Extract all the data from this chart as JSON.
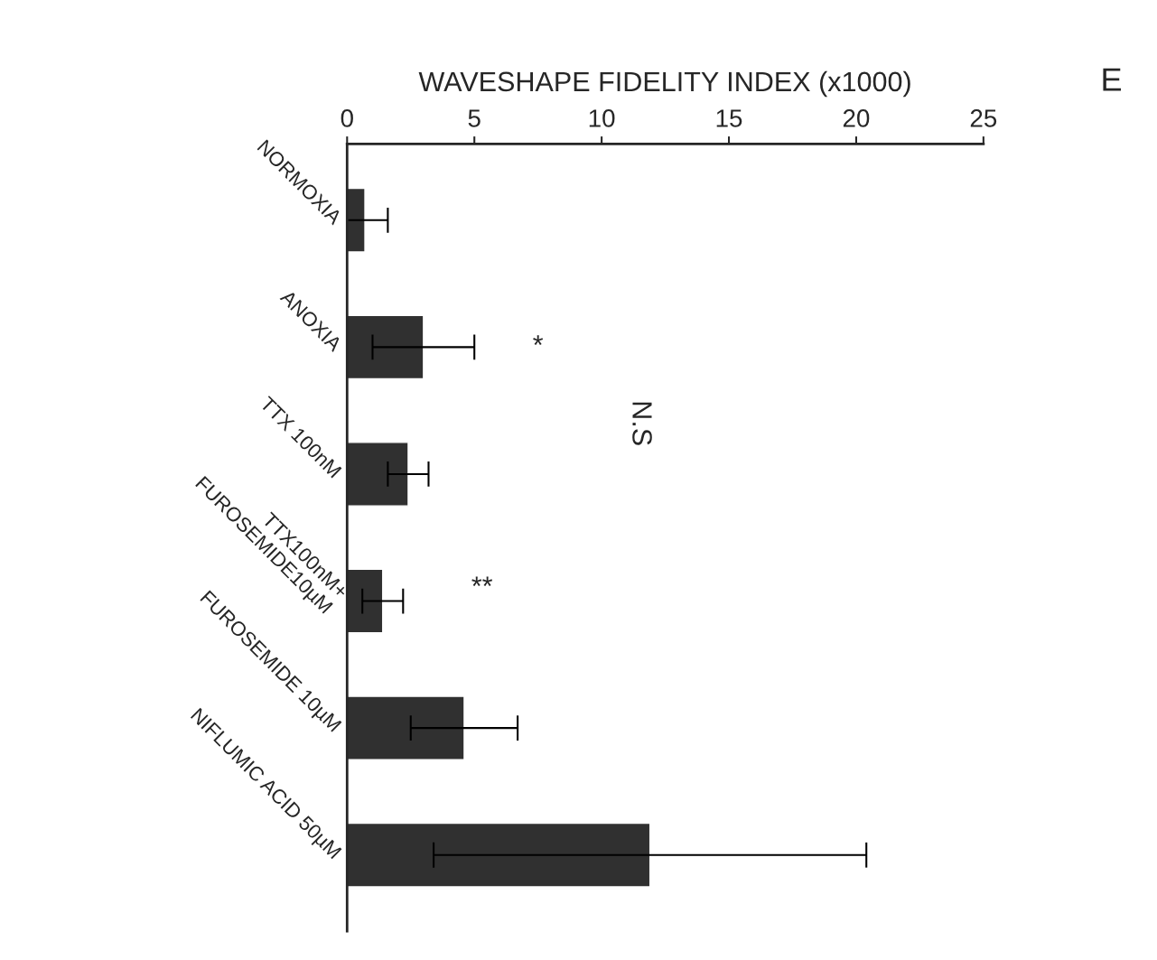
{
  "chart_data": {
    "type": "bar",
    "orientation": "horizontal",
    "xlabel": "WAVESHAPE FIDELITY INDEX (x1000)",
    "categories": [
      "NORMOXIA",
      "ANOXIA",
      "TTX 100nM",
      "TTX100nM+\nFUROSEMIDE10µM",
      "FUROSEMIDE 10µM",
      "NIFLUMIC ACID 50µM"
    ],
    "values": [
      0.7,
      3.0,
      2.4,
      1.4,
      4.6,
      11.9
    ],
    "errors": [
      0.9,
      2.0,
      0.8,
      0.8,
      2.1,
      8.5
    ],
    "color": "#303030",
    "xlim": [
      0,
      25
    ],
    "xticks": [
      0,
      5,
      10,
      15,
      20,
      25
    ],
    "annotations": [
      "*",
      "**",
      "N.S",
      "E"
    ],
    "grid": false
  }
}
